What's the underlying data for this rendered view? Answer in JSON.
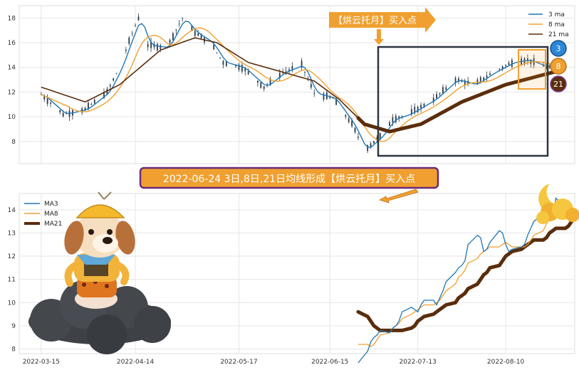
{
  "chart_data": [
    {
      "type": "line",
      "panel": "top",
      "description_series": [
        "price-candles",
        "3 ma",
        "8 ma",
        "21 ma"
      ],
      "yticks": [
        8,
        10,
        12,
        14,
        16,
        18
      ],
      "ylim": [
        6.2,
        19
      ],
      "xlim": [
        "2022-03-08",
        "2022-09-01"
      ],
      "grid": true,
      "legend": {
        "position": "top-right",
        "entries": [
          "3 ma",
          "8 ma",
          "21 ma"
        ]
      },
      "colors": {
        "ma3": "#1f77b4",
        "ma8": "#f0a030",
        "ma21": "#5a2d0c",
        "candles": "#2a3a4a"
      },
      "annotation_text": "【烘云托月】买入点",
      "badges": [
        "3",
        "8",
        "21"
      ],
      "price_keypoints": [
        [
          "2022-03-15",
          11.8
        ],
        [
          "2022-03-22",
          10.2
        ],
        [
          "2022-03-29",
          10.6
        ],
        [
          "2022-04-05",
          12.0
        ],
        [
          "2022-04-09",
          14.0
        ],
        [
          "2022-04-13",
          16.8
        ],
        [
          "2022-04-15",
          18.0
        ],
        [
          "2022-04-18",
          15.8
        ],
        [
          "2022-04-24",
          15.6
        ],
        [
          "2022-04-29",
          18.0
        ],
        [
          "2022-05-03",
          16.8
        ],
        [
          "2022-05-08",
          16.0
        ],
        [
          "2022-05-12",
          14.4
        ],
        [
          "2022-05-18",
          14.0
        ],
        [
          "2022-05-25",
          12.4
        ],
        [
          "2022-05-31",
          13.6
        ],
        [
          "2022-06-06",
          14.2
        ],
        [
          "2022-06-10",
          11.9
        ],
        [
          "2022-06-16",
          11.5
        ],
        [
          "2022-06-22",
          9.4
        ],
        [
          "2022-06-26",
          7.3
        ],
        [
          "2022-07-01",
          8.4
        ],
        [
          "2022-07-05",
          9.8
        ],
        [
          "2022-07-10",
          10.2
        ],
        [
          "2022-07-18",
          11.4
        ],
        [
          "2022-07-25",
          13.0
        ],
        [
          "2022-07-31",
          12.6
        ],
        [
          "2022-08-06",
          13.6
        ],
        [
          "2022-08-12",
          14.4
        ],
        [
          "2022-08-17",
          14.6
        ],
        [
          "2022-08-23",
          14.0
        ],
        [
          "2022-08-28",
          14.2
        ]
      ],
      "ma21_keypoints": [
        [
          "2022-03-15",
          12.4
        ],
        [
          "2022-03-29",
          11.2
        ],
        [
          "2022-04-09",
          12.6
        ],
        [
          "2022-04-22",
          15.4
        ],
        [
          "2022-05-03",
          16.4
        ],
        [
          "2022-05-10",
          16.0
        ],
        [
          "2022-05-20",
          14.4
        ],
        [
          "2022-06-03",
          13.4
        ],
        [
          "2022-06-10",
          12.9
        ],
        [
          "2022-06-18",
          11.4
        ],
        [
          "2022-06-26",
          9.4
        ],
        [
          "2022-07-04",
          8.8
        ],
        [
          "2022-07-14",
          9.4
        ],
        [
          "2022-07-27",
          11.2
        ],
        [
          "2022-08-10",
          12.6
        ],
        [
          "2022-08-28",
          13.8
        ]
      ]
    },
    {
      "type": "line",
      "panel": "bottom",
      "title": "2022-06-24 3日,8日,21日均线形成【烘云托月】买入点",
      "x_ticks": [
        "2022-03-15",
        "2022-04-14",
        "2022-05-17",
        "2022-06-15",
        "2022-07-13",
        "2022-08-10"
      ],
      "yticks": [
        8,
        9,
        10,
        11,
        12,
        13,
        14
      ],
      "ylim": [
        7.8,
        14.7
      ],
      "grid": true,
      "legend": {
        "position": "top-left",
        "entries": [
          "MA3",
          "MA8",
          "MA21"
        ]
      },
      "series": [
        {
          "name": "MA3",
          "color": "#1f77b4",
          "x": [
            "2022-06-24",
            "2022-06-27",
            "2022-06-28",
            "2022-06-29",
            "2022-06-30",
            "2022-07-01",
            "2022-07-04",
            "2022-07-05",
            "2022-07-06",
            "2022-07-07",
            "2022-07-08",
            "2022-07-11",
            "2022-07-12",
            "2022-07-13",
            "2022-07-14",
            "2022-07-15",
            "2022-07-18",
            "2022-07-19",
            "2022-07-20",
            "2022-07-21",
            "2022-07-22",
            "2022-07-25",
            "2022-07-26",
            "2022-07-27",
            "2022-07-28",
            "2022-07-29",
            "2022-08-01",
            "2022-08-02",
            "2022-08-03",
            "2022-08-04",
            "2022-08-05",
            "2022-08-08",
            "2022-08-09",
            "2022-08-10",
            "2022-08-11",
            "2022-08-12",
            "2022-08-15",
            "2022-08-16",
            "2022-08-17",
            "2022-08-18",
            "2022-08-19",
            "2022-08-22",
            "2022-08-23",
            "2022-08-24",
            "2022-08-25",
            "2022-08-26",
            "2022-08-29",
            "2022-08-30",
            "2022-08-31"
          ],
          "y": [
            7.4,
            7.9,
            8.3,
            8.5,
            8.6,
            8.8,
            8.7,
            8.9,
            9.0,
            9.2,
            9.6,
            9.8,
            9.7,
            9.6,
            9.9,
            10.1,
            10.1,
            9.9,
            10.2,
            10.5,
            10.9,
            11.3,
            11.5,
            11.6,
            11.8,
            12.5,
            12.9,
            12.8,
            12.2,
            12.3,
            12.6,
            13.1,
            13.0,
            12.5,
            12.2,
            12.3,
            12.4,
            12.5,
            12.9,
            13.2,
            13.5,
            13.8,
            14.0,
            14.3,
            13.8,
            14.5,
            14.1,
            14.0,
            13.9
          ]
        },
        {
          "name": "MA8",
          "color": "#f0a030",
          "x": [
            "2022-06-24",
            "2022-06-27",
            "2022-06-28",
            "2022-06-29",
            "2022-06-30",
            "2022-07-01",
            "2022-07-04",
            "2022-07-05",
            "2022-07-06",
            "2022-07-07",
            "2022-07-08",
            "2022-07-11",
            "2022-07-12",
            "2022-07-13",
            "2022-07-14",
            "2022-07-15",
            "2022-07-18",
            "2022-07-19",
            "2022-07-20",
            "2022-07-21",
            "2022-07-22",
            "2022-07-25",
            "2022-07-26",
            "2022-07-27",
            "2022-07-28",
            "2022-07-29",
            "2022-08-01",
            "2022-08-02",
            "2022-08-03",
            "2022-08-04",
            "2022-08-05",
            "2022-08-08",
            "2022-08-09",
            "2022-08-10",
            "2022-08-11",
            "2022-08-12",
            "2022-08-15",
            "2022-08-16",
            "2022-08-17",
            "2022-08-18",
            "2022-08-19",
            "2022-08-22",
            "2022-08-23",
            "2022-08-24",
            "2022-08-25",
            "2022-08-26",
            "2022-08-29",
            "2022-08-30",
            "2022-08-31"
          ],
          "y": [
            8.2,
            8.2,
            8.1,
            8.2,
            8.4,
            8.6,
            8.7,
            8.9,
            9.0,
            9.1,
            9.3,
            9.5,
            9.6,
            9.7,
            9.8,
            9.9,
            9.9,
            10.0,
            10.1,
            10.3,
            10.5,
            10.8,
            11.1,
            11.2,
            11.4,
            11.7,
            11.9,
            12.1,
            12.2,
            12.3,
            12.4,
            12.4,
            12.5,
            12.6,
            12.5,
            12.4,
            12.4,
            12.4,
            12.5,
            12.7,
            12.9,
            13.1,
            13.4,
            13.6,
            13.8,
            13.9,
            14.0,
            14.0,
            14.1
          ]
        },
        {
          "name": "MA21",
          "color": "#5a2d0c",
          "x": [
            "2022-06-24",
            "2022-06-27",
            "2022-06-28",
            "2022-06-29",
            "2022-06-30",
            "2022-07-01",
            "2022-07-04",
            "2022-07-05",
            "2022-07-06",
            "2022-07-07",
            "2022-07-08",
            "2022-07-11",
            "2022-07-12",
            "2022-07-13",
            "2022-07-14",
            "2022-07-15",
            "2022-07-18",
            "2022-07-19",
            "2022-07-20",
            "2022-07-21",
            "2022-07-22",
            "2022-07-25",
            "2022-07-26",
            "2022-07-27",
            "2022-07-28",
            "2022-07-29",
            "2022-08-01",
            "2022-08-02",
            "2022-08-03",
            "2022-08-04",
            "2022-08-05",
            "2022-08-08",
            "2022-08-09",
            "2022-08-10",
            "2022-08-11",
            "2022-08-12",
            "2022-08-15",
            "2022-08-16",
            "2022-08-17",
            "2022-08-18",
            "2022-08-19",
            "2022-08-22",
            "2022-08-23",
            "2022-08-24",
            "2022-08-25",
            "2022-08-26",
            "2022-08-29",
            "2022-08-30",
            "2022-08-31"
          ],
          "y": [
            9.6,
            9.4,
            9.2,
            9.0,
            8.9,
            8.8,
            8.8,
            8.8,
            8.8,
            8.8,
            8.8,
            8.9,
            9.0,
            9.2,
            9.3,
            9.4,
            9.5,
            9.6,
            9.7,
            9.8,
            9.9,
            10.0,
            10.2,
            10.3,
            10.4,
            10.6,
            10.8,
            11.0,
            11.2,
            11.3,
            11.5,
            11.6,
            11.8,
            12.0,
            12.1,
            12.2,
            12.3,
            12.4,
            12.5,
            12.6,
            12.7,
            12.7,
            12.8,
            13.0,
            13.1,
            13.2,
            13.2,
            13.3,
            13.5
          ]
        }
      ]
    }
  ]
}
